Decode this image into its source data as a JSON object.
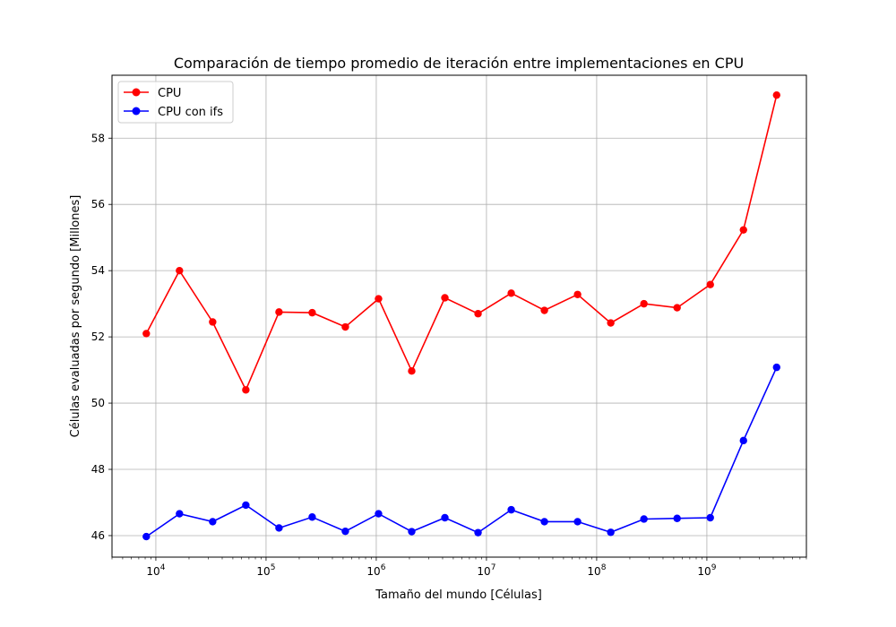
{
  "chart_data": {
    "type": "line",
    "title": "Comparación de tiempo promedio de iteración entre implementaciones en CPU",
    "xlabel": "Tamaño del mundo [Células]",
    "ylabel": "Células evaluadas por segundo [Millones]",
    "x_scale": "log",
    "xlim": [
      4000,
      8000000000
    ],
    "ylim": [
      45.35,
      59.9
    ],
    "x_major_ticks": [
      {
        "value": 10000,
        "base": "10",
        "exp": "4"
      },
      {
        "value": 100000,
        "base": "10",
        "exp": "5"
      },
      {
        "value": 1000000,
        "base": "10",
        "exp": "6"
      },
      {
        "value": 10000000,
        "base": "10",
        "exp": "7"
      },
      {
        "value": 100000000,
        "base": "10",
        "exp": "8"
      },
      {
        "value": 1000000000,
        "base": "10",
        "exp": "9"
      }
    ],
    "y_ticks": [
      46,
      48,
      50,
      52,
      54,
      56,
      58
    ],
    "y_tick_labels": [
      "46",
      "48",
      "50",
      "52",
      "54",
      "56",
      "58"
    ],
    "grid": true,
    "legend_position": "upper-left",
    "x": [
      8192,
      16384,
      32768,
      65536,
      131072,
      262144,
      524288,
      1048576,
      2097152,
      4194304,
      8388608,
      16777216,
      33554432,
      67108864,
      134217728,
      268435456,
      536870912,
      1073741824,
      2147483648,
      4294967296
    ],
    "series": [
      {
        "name": "CPU",
        "color": "#ff0000",
        "values": [
          52.1,
          54.0,
          52.45,
          50.4,
          52.75,
          52.73,
          52.3,
          53.15,
          50.97,
          53.18,
          52.7,
          53.32,
          52.8,
          53.28,
          52.42,
          53.0,
          52.88,
          53.58,
          55.23,
          59.3
        ]
      },
      {
        "name": "CPU con ifs",
        "color": "#0000ff",
        "values": [
          45.97,
          46.66,
          46.42,
          46.92,
          46.23,
          46.56,
          46.13,
          46.66,
          46.12,
          46.54,
          46.09,
          46.78,
          46.42,
          46.42,
          46.1,
          46.5,
          46.52,
          46.54,
          48.87,
          51.08
        ]
      }
    ]
  }
}
